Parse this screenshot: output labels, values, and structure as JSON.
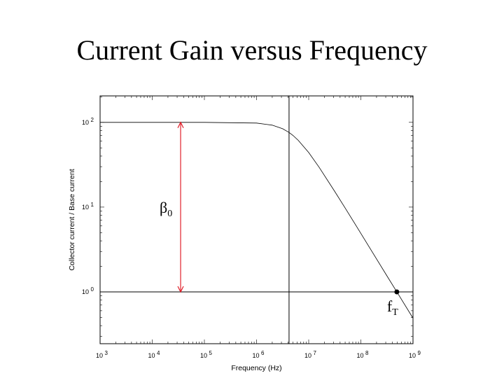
{
  "slide": {
    "title": "Current Gain versus Frequency"
  },
  "chart_data": {
    "type": "line",
    "title": "Current Gain versus Frequency",
    "xlabel": "Frequency (Hz)",
    "ylabel": "Collector current / Base current",
    "xscale": "log",
    "yscale": "log",
    "xlim": [
      1000,
      1000000000
    ],
    "ylim": [
      0.245,
      205
    ],
    "grid": false,
    "x_ticks": [
      {
        "value": 1000,
        "base": "10",
        "exp": "3"
      },
      {
        "value": 10000,
        "base": "10",
        "exp": "4"
      },
      {
        "value": 100000,
        "base": "10",
        "exp": "5"
      },
      {
        "value": 1000000,
        "base": "10",
        "exp": "6"
      },
      {
        "value": 10000000,
        "base": "10",
        "exp": "7"
      },
      {
        "value": 100000000,
        "base": "10",
        "exp": "8"
      },
      {
        "value": 1000000000,
        "base": "10",
        "exp": "9"
      }
    ],
    "y_ticks": [
      {
        "value": 1,
        "base": "10",
        "exp": "0"
      },
      {
        "value": 10,
        "base": "10",
        "exp": "1"
      },
      {
        "value": 100,
        "base": "10",
        "exp": "2"
      }
    ],
    "series": [
      {
        "color": "#000000",
        "x": [
          1000,
          10000,
          100000,
          1000000,
          2000000,
          3160000,
          4200000,
          5000000,
          6310000,
          10000000,
          15800000,
          31600000,
          50000000,
          100000000,
          316000000,
          500000000,
          1000000000
        ],
        "y": [
          100,
          100,
          100,
          98.0,
          92.6,
          84.0,
          76.0,
          70.0,
          61.3,
          44.0,
          29.6,
          15.3,
          9.76,
          4.9,
          1.55,
          0.98,
          0.49
        ]
      }
    ],
    "reference_lines": {
      "unity_gain_y": 1,
      "corner_frequency_x": 4200000,
      "color": "#000000"
    },
    "annotations": {
      "beta0": {
        "symbol": "β",
        "subscript": "0",
        "x": 35000,
        "from_y": 1,
        "to_y": 100,
        "color": "#e0202a"
      },
      "fT": {
        "symbol": "f",
        "subscript": "T",
        "x": 490000000,
        "y": 1
      }
    }
  }
}
